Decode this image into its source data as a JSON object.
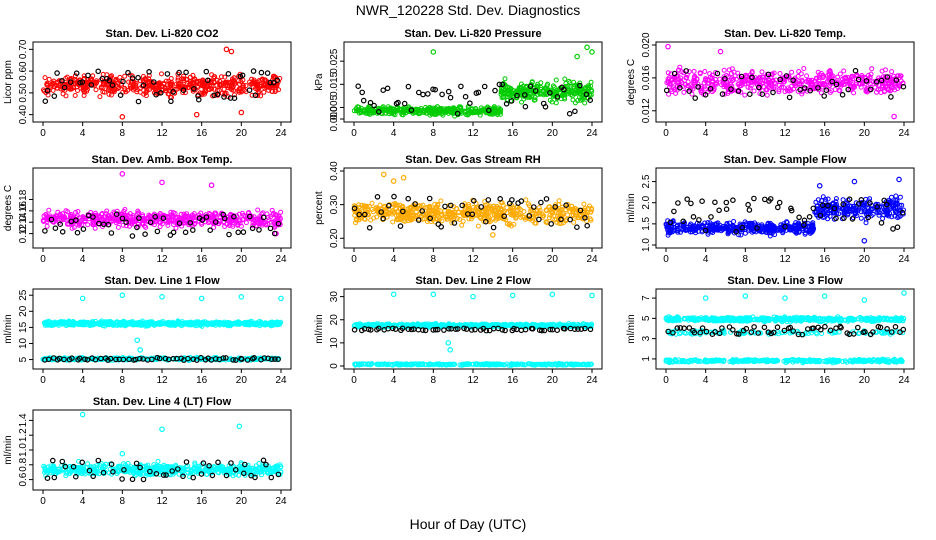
{
  "figure": {
    "title": "NWR_120228  Std. Dev. Diagnostics",
    "xlabel": "Hour of Day (UTC)"
  },
  "chart_data": [
    {
      "type": "scatter",
      "title": "Stan. Dev. Li-820 CO2",
      "ylabel": "Licor ppm",
      "color": "#ff0000",
      "xlim": [
        0,
        24
      ],
      "xticks": [
        0,
        4,
        8,
        12,
        16,
        20,
        24
      ],
      "ylim": [
        0.38,
        0.72
      ],
      "yticks": [
        "0.40",
        "0.50",
        "0.60",
        "0.70"
      ],
      "bands": [
        {
          "min": 0.47,
          "max": 0.6,
          "density": 520
        }
      ],
      "black_points": {
        "min": 0.46,
        "max": 0.6,
        "count": 55
      },
      "outliers": [
        [
          8,
          0.39
        ],
        [
          15.5,
          0.4
        ],
        [
          18.5,
          0.7
        ],
        [
          19,
          0.69
        ],
        [
          20,
          0.41
        ]
      ]
    },
    {
      "type": "scatter",
      "title": "Stan. Dev. Li-820 Pressure",
      "ylabel": "kPa",
      "color": "#00cc00",
      "xlim": [
        0,
        24
      ],
      "xticks": [
        0,
        4,
        8,
        12,
        16,
        20,
        24
      ],
      "ylim": [
        0,
        0.032
      ],
      "yticks": [
        "0.000",
        "0.005",
        "0.015",
        "0.025"
      ],
      "bands": [
        {
          "x0": 0,
          "x1": 14.8,
          "min": 0.001,
          "max": 0.006,
          "density": 360
        },
        {
          "x0": 14.8,
          "x1": 24,
          "min": 0.006,
          "max": 0.018,
          "density": 260
        }
      ],
      "black_points": {
        "min": 0.002,
        "max": 0.015,
        "count": 50
      },
      "outliers": [
        [
          8,
          0.029
        ],
        [
          22.5,
          0.027
        ],
        [
          23.5,
          0.031
        ],
        [
          24,
          0.029
        ]
      ]
    },
    {
      "type": "scatter",
      "title": "Stan. Dev. Li-820 Temp.",
      "ylabel": "degrees C",
      "color": "#ff00ff",
      "xlim": [
        0,
        24
      ],
      "xticks": [
        0,
        4,
        8,
        12,
        16,
        20,
        24
      ],
      "ylim": [
        0.011,
        0.02
      ],
      "yticks": [
        "0.012",
        "0.016",
        "0.020"
      ],
      "bands": [
        {
          "min": 0.0135,
          "max": 0.0175,
          "density": 520
        }
      ],
      "black_points": {
        "min": 0.0135,
        "max": 0.017,
        "count": 45
      },
      "outliers": [
        [
          0.2,
          0.0198
        ],
        [
          5.5,
          0.0192
        ],
        [
          23,
          0.0113
        ]
      ]
    },
    {
      "type": "scatter",
      "title": "Stan. Dev. Amb. Box Temp.",
      "ylabel": "degrees C",
      "color": "#ff00ff",
      "xlim": [
        0,
        24
      ],
      "xticks": [
        0,
        4,
        8,
        12,
        16,
        20,
        24
      ],
      "ylim": [
        0.1,
        0.23
      ],
      "yticks": [
        "0.12",
        "0.14",
        "0.16",
        "0.18"
      ],
      "bands": [
        {
          "min": 0.125,
          "max": 0.165,
          "density": 520
        }
      ],
      "black_points": {
        "min": 0.115,
        "max": 0.155,
        "count": 50
      },
      "outliers": [
        [
          8,
          0.225
        ],
        [
          12,
          0.21
        ],
        [
          17,
          0.205
        ],
        [
          23.5,
          0.12
        ]
      ]
    },
    {
      "type": "scatter",
      "title": "Stan. Dev. Gas Stream RH",
      "ylabel": "percent",
      "color": "#ffaa00",
      "xlim": [
        0,
        24
      ],
      "xticks": [
        0,
        4,
        8,
        12,
        16,
        20,
        24
      ],
      "ylim": [
        0.18,
        0.4
      ],
      "yticks": [
        "0.20",
        "0.30",
        "0.40"
      ],
      "bands": [
        {
          "min": 0.23,
          "max": 0.32,
          "density": 560
        }
      ],
      "black_points": {
        "min": 0.23,
        "max": 0.33,
        "count": 50
      },
      "outliers": [
        [
          3,
          0.39
        ],
        [
          4,
          0.37
        ],
        [
          5,
          0.38
        ],
        [
          14,
          0.21
        ]
      ]
    },
    {
      "type": "scatter",
      "title": "Stan. Dev. Sample Flow",
      "ylabel": "ml/min",
      "color": "#0000ff",
      "xlim": [
        0,
        24
      ],
      "xticks": [
        0,
        4,
        8,
        12,
        16,
        20,
        24
      ],
      "ylim": [
        1.0,
        2.75
      ],
      "yticks": [
        "1.0",
        "1.5",
        "2.0",
        "2.5"
      ],
      "bands": [
        {
          "x0": 0,
          "x1": 15,
          "min": 1.2,
          "max": 1.6,
          "density": 380
        },
        {
          "x0": 15,
          "x1": 24,
          "min": 1.5,
          "max": 2.2,
          "density": 240
        }
      ],
      "black_points": {
        "min": 1.3,
        "max": 2.1,
        "count": 55
      },
      "outliers": [
        [
          15.5,
          2.4
        ],
        [
          19,
          2.5
        ],
        [
          23.5,
          2.55
        ],
        [
          20,
          1.1
        ]
      ]
    },
    {
      "type": "scatter",
      "title": "Stan. Dev. Line 1 Flow",
      "ylabel": "ml/min",
      "color": "#00ffff",
      "xlim": [
        0,
        24
      ],
      "xticks": [
        0,
        4,
        8,
        12,
        16,
        20,
        24
      ],
      "ylim": [
        3,
        26
      ],
      "yticks": [
        "5",
        "10",
        "15",
        "20",
        "25"
      ],
      "bands": [
        {
          "min": 15.2,
          "max": 17.2,
          "density": 520
        },
        {
          "min": 4.6,
          "max": 5.8,
          "density": 300
        }
      ],
      "black_points": {
        "min": 4.8,
        "max": 5.6,
        "count": 60
      },
      "outliers": [
        [
          4,
          24
        ],
        [
          8,
          25
        ],
        [
          12,
          24.5
        ],
        [
          16,
          24
        ],
        [
          20,
          24.5
        ],
        [
          24,
          24
        ],
        [
          9.5,
          11
        ],
        [
          9.8,
          8
        ]
      ]
    },
    {
      "type": "scatter",
      "title": "Stan. Dev. Line 2 Flow",
      "ylabel": "ml/min",
      "color": "#00ffff",
      "xlim": [
        0,
        24
      ],
      "xticks": [
        0,
        4,
        8,
        12,
        16,
        20,
        24
      ],
      "ylim": [
        0,
        32
      ],
      "yticks": [
        "0",
        "10",
        "20",
        "30"
      ],
      "bands": [
        {
          "min": 16.5,
          "max": 18.5,
          "density": 480
        },
        {
          "min": 0.2,
          "max": 1.2,
          "density": 300
        }
      ],
      "black_points": {
        "min": 15.3,
        "max": 16.3,
        "count": 60
      },
      "outliers": [
        [
          4,
          31
        ],
        [
          8,
          31
        ],
        [
          12,
          30
        ],
        [
          16,
          30.5
        ],
        [
          20,
          31
        ],
        [
          24,
          30.5
        ],
        [
          9.5,
          10
        ],
        [
          9.7,
          7
        ]
      ]
    },
    {
      "type": "scatter",
      "title": "Stan. Dev. Line 3 Flow",
      "ylabel": "ml/min",
      "color": "#00ffff",
      "xlim": [
        0,
        24
      ],
      "xticks": [
        0,
        4,
        8,
        12,
        16,
        20,
        24
      ],
      "ylim": [
        0.3,
        7.6
      ],
      "yticks": [
        "1",
        "3",
        "5",
        "7"
      ],
      "bands": [
        {
          "min": 4.6,
          "max": 5.2,
          "density": 480
        },
        {
          "min": 0.6,
          "max": 1.0,
          "density": 300
        },
        {
          "min": 3.3,
          "max": 3.9,
          "density": 120
        }
      ],
      "black_points": {
        "min": 3.4,
        "max": 4.2,
        "count": 60
      },
      "outliers": [
        [
          4,
          7
        ],
        [
          8,
          7.2
        ],
        [
          12,
          7
        ],
        [
          16,
          7.2
        ],
        [
          20,
          6.8
        ],
        [
          24,
          7.5
        ]
      ]
    },
    {
      "type": "scatter",
      "title": "Stan. Dev. Line 4 (LT) Flow",
      "ylabel": "ml/min",
      "color": "#00ffff",
      "xlim": [
        0,
        24
      ],
      "xticks": [
        0,
        4,
        8,
        12,
        16,
        20,
        24
      ],
      "ylim": [
        0.5,
        1.5
      ],
      "yticks": [
        "0.6",
        "0.8",
        "1.0",
        "1.2",
        "1.4"
      ],
      "bands": [
        {
          "min": 0.62,
          "max": 0.85,
          "density": 520
        }
      ],
      "black_points": {
        "min": 0.6,
        "max": 0.88,
        "count": 45
      },
      "outliers": [
        [
          4,
          1.48
        ],
        [
          12,
          1.28
        ],
        [
          19.8,
          1.32
        ],
        [
          8,
          0.95
        ]
      ]
    }
  ]
}
